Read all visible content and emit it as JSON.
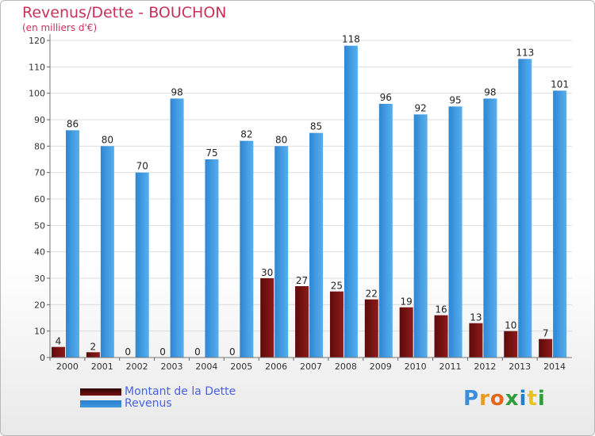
{
  "title": "Revenus/Dette - BOUCHON",
  "subtitle": "(en milliers d'€)",
  "colors": {
    "dette": "#7a1212",
    "revenus": "#3d98e0",
    "title": "#c8325a",
    "legend_text": "#4a62e6"
  },
  "chart_data": {
    "type": "bar",
    "title": "Revenus/Dette - BOUCHON",
    "ylabel": "(en milliers d'€)",
    "categories": [
      "2000",
      "2001",
      "2002",
      "2003",
      "2004",
      "2005",
      "2006",
      "2007",
      "2008",
      "2009",
      "2010",
      "2011",
      "2012",
      "2013",
      "2014"
    ],
    "ylim": [
      0,
      120
    ],
    "yticks": [
      0,
      10,
      20,
      30,
      40,
      50,
      60,
      70,
      80,
      90,
      100,
      110,
      120
    ],
    "grid": true,
    "legend_position": "bottom-left",
    "series": [
      {
        "name": "Montant de la Dette",
        "values": [
          4,
          2,
          0,
          0,
          0,
          0,
          30,
          27,
          25,
          22,
          19,
          16,
          13,
          10,
          7
        ]
      },
      {
        "name": "Revenus",
        "values": [
          86,
          80,
          70,
          98,
          75,
          82,
          80,
          85,
          118,
          96,
          92,
          95,
          98,
          113,
          101
        ]
      }
    ]
  },
  "legend": {
    "items": [
      "Montant de la Dette",
      "Revenus"
    ]
  },
  "logo": {
    "text": "Proxiti"
  }
}
